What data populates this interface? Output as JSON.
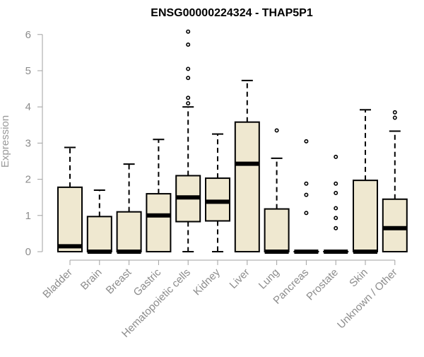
{
  "chart_data": {
    "type": "boxplot",
    "title": "ENSG00000224324 - THAP5P1",
    "xlabel": "",
    "ylabel": "Expression",
    "ylim": [
      0,
      6.2
    ],
    "yticks": [
      "0",
      "1",
      "2",
      "3",
      "4",
      "5",
      "6"
    ],
    "box_fill": "#efe8d0",
    "box_stroke": "#000000",
    "grid": false,
    "categories": [
      "Bladder",
      "Brain",
      "Breast",
      "Gastric",
      "Hematopoietic cells",
      "Kidney",
      "Liver",
      "Lung",
      "Pancreas",
      "Prostate",
      "Skin",
      "Unknown / Other"
    ],
    "boxes": [
      {
        "q1": 0.0,
        "median": 0.15,
        "q3": 1.78,
        "whisker_low": 0.0,
        "whisker_high": 2.88,
        "outliers": []
      },
      {
        "q1": 0.0,
        "median": 0.0,
        "q3": 0.97,
        "whisker_low": 0.0,
        "whisker_high": 1.7,
        "outliers": []
      },
      {
        "q1": 0.0,
        "median": 0.0,
        "q3": 1.1,
        "whisker_low": 0.0,
        "whisker_high": 2.42,
        "outliers": []
      },
      {
        "q1": 0.0,
        "median": 1.0,
        "q3": 1.6,
        "whisker_low": 0.0,
        "whisker_high": 3.1,
        "outliers": []
      },
      {
        "q1": 0.83,
        "median": 1.5,
        "q3": 2.1,
        "whisker_low": 0.0,
        "whisker_high": 4.0,
        "outliers": [
          4.1,
          4.25,
          4.8,
          5.05,
          5.72,
          6.08
        ]
      },
      {
        "q1": 0.85,
        "median": 1.38,
        "q3": 2.03,
        "whisker_low": 0.0,
        "whisker_high": 3.25,
        "outliers": []
      },
      {
        "q1": 0.0,
        "median": 2.43,
        "q3": 3.58,
        "whisker_low": 0.0,
        "whisker_high": 4.73,
        "outliers": []
      },
      {
        "q1": 0.0,
        "median": 0.0,
        "q3": 1.18,
        "whisker_low": 0.0,
        "whisker_high": 2.58,
        "outliers": [
          3.35
        ]
      },
      {
        "q1": 0.0,
        "median": 0.0,
        "q3": 0.0,
        "whisker_low": 0.0,
        "whisker_high": 0.0,
        "outliers": [
          1.07,
          1.57,
          1.88,
          3.05
        ]
      },
      {
        "q1": 0.0,
        "median": 0.0,
        "q3": 0.0,
        "whisker_low": 0.0,
        "whisker_high": 0.0,
        "outliers": [
          0.65,
          0.93,
          1.2,
          1.62,
          1.88,
          2.62
        ]
      },
      {
        "q1": 0.0,
        "median": 0.0,
        "q3": 1.97,
        "whisker_low": 0.0,
        "whisker_high": 3.92,
        "outliers": []
      },
      {
        "q1": 0.0,
        "median": 0.65,
        "q3": 1.45,
        "whisker_low": 0.0,
        "whisker_high": 3.33,
        "outliers": [
          3.7,
          3.85
        ]
      }
    ]
  }
}
